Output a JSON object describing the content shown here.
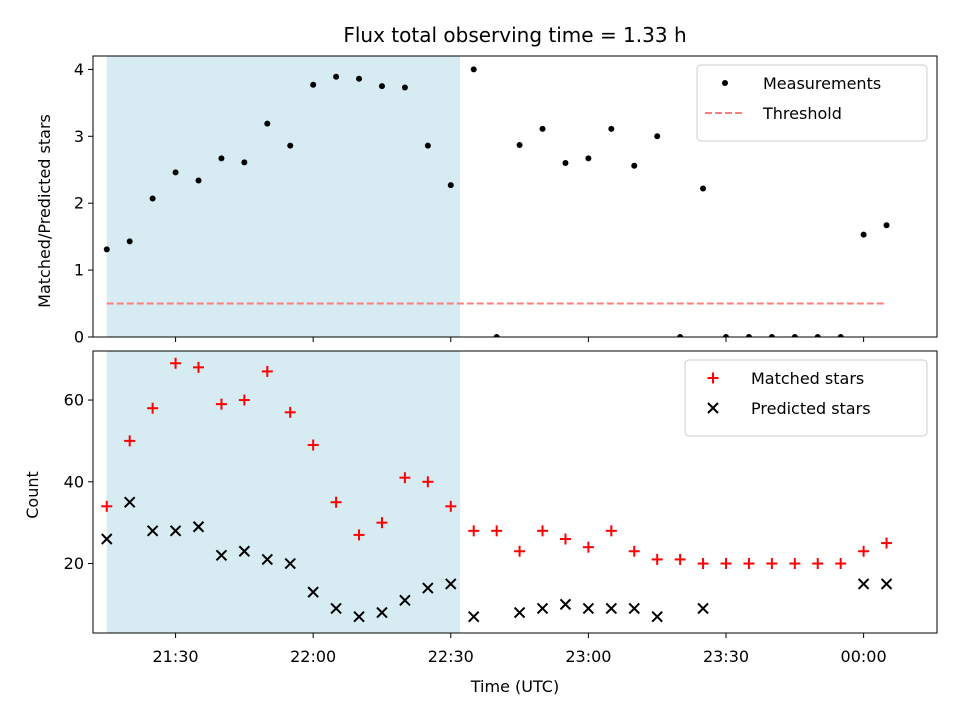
{
  "chart_data": {
    "type": "scatter",
    "title": "Flux total observing time = 1.33 h",
    "xlabel": "Time (UTC)",
    "x_ticks": [
      "21:30",
      "22:00",
      "22:30",
      "23:00",
      "23:30",
      "00:00"
    ],
    "x_tick_minutes": [
      1290,
      1320,
      1350,
      1380,
      1410,
      1440
    ],
    "xlim_minutes": [
      1272,
      1456
    ],
    "x_unit": "minutes since 00:00 UTC (minutes ≥ 1440 are after midnight)",
    "times": [
      "21:15",
      "21:20",
      "21:25",
      "21:30",
      "21:35",
      "21:40",
      "21:45",
      "21:50",
      "21:55",
      "22:00",
      "22:05",
      "22:10",
      "22:15",
      "22:20",
      "22:25",
      "22:30",
      "22:35",
      "22:40",
      "22:45",
      "22:50",
      "22:55",
      "23:00",
      "23:05",
      "23:10",
      "23:15",
      "23:20",
      "23:25",
      "23:30",
      "23:35",
      "23:40",
      "23:45",
      "23:50",
      "23:55",
      "00:00",
      "00:05"
    ],
    "time_minutes": [
      1275,
      1280,
      1285,
      1290,
      1295,
      1300,
      1305,
      1310,
      1315,
      1320,
      1325,
      1330,
      1335,
      1340,
      1345,
      1350,
      1355,
      1360,
      1365,
      1370,
      1375,
      1380,
      1385,
      1390,
      1395,
      1400,
      1405,
      1410,
      1415,
      1420,
      1425,
      1430,
      1435,
      1440,
      1445
    ],
    "shaded_region": [
      "21:15",
      "22:32"
    ],
    "shaded_region_minutes": [
      1275,
      1352
    ],
    "shaded_color": "#add8e6",
    "panels": [
      {
        "ylabel": "Matched/Predicted stars",
        "ylim": [
          0,
          4.2
        ],
        "y_ticks": [
          0,
          1,
          2,
          3,
          4
        ],
        "legend_position": "upper right",
        "series": [
          {
            "name": "Measurements",
            "marker": "dot",
            "color": "#000000",
            "x_minutes": [
              1275,
              1280,
              1285,
              1290,
              1295,
              1300,
              1305,
              1310,
              1315,
              1320,
              1325,
              1330,
              1335,
              1340,
              1345,
              1350,
              1355,
              1360,
              1365,
              1370,
              1375,
              1380,
              1385,
              1390,
              1395,
              1400,
              1405,
              1410,
              1415,
              1420,
              1425,
              1430,
              1435,
              1440,
              1445
            ],
            "values": [
              1.31,
              1.43,
              2.07,
              2.46,
              2.34,
              2.67,
              2.61,
              3.19,
              2.86,
              3.77,
              3.89,
              3.86,
              3.75,
              3.73,
              2.86,
              2.27,
              4.0,
              0,
              2.87,
              3.11,
              2.6,
              2.67,
              3.11,
              2.56,
              3.0,
              0,
              2.22,
              0,
              0,
              0,
              0,
              0,
              0,
              1.53,
              1.67
            ]
          }
        ],
        "threshold": {
          "name": "Threshold",
          "value": 0.5,
          "color": "#ff7f7f",
          "style": "dashed"
        }
      },
      {
        "ylabel": "Count",
        "ylim": [
          3,
          72
        ],
        "y_ticks": [
          20,
          40,
          60
        ],
        "legend_position": "upper right",
        "series": [
          {
            "name": "Matched stars",
            "marker": "plus",
            "color": "#ff0000",
            "x_minutes": [
              1275,
              1280,
              1285,
              1290,
              1295,
              1300,
              1305,
              1310,
              1315,
              1320,
              1325,
              1330,
              1335,
              1340,
              1345,
              1350,
              1355,
              1360,
              1365,
              1370,
              1375,
              1380,
              1385,
              1390,
              1395,
              1400,
              1405,
              1410,
              1415,
              1420,
              1425,
              1430,
              1435,
              1440,
              1445
            ],
            "values": [
              34,
              50,
              58,
              69,
              68,
              59,
              60,
              67,
              57,
              49,
              35,
              27,
              30,
              41,
              40,
              34,
              28,
              28,
              23,
              28,
              26,
              24,
              28,
              23,
              21,
              21,
              20,
              20,
              20,
              20,
              20,
              20,
              20,
              23,
              25
            ]
          },
          {
            "name": "Predicted stars",
            "marker": "x",
            "color": "#000000",
            "x_minutes": [
              1275,
              1280,
              1285,
              1290,
              1295,
              1300,
              1305,
              1310,
              1315,
              1320,
              1325,
              1330,
              1335,
              1340,
              1345,
              1350,
              1355,
              1365,
              1370,
              1375,
              1380,
              1385,
              1390,
              1395,
              1405,
              1440,
              1445
            ],
            "values": [
              26,
              35,
              28,
              28,
              29,
              22,
              23,
              21,
              20,
              13,
              9,
              7,
              8,
              11,
              14,
              15,
              7,
              8,
              9,
              10,
              9,
              9,
              9,
              7,
              9,
              15,
              15
            ]
          }
        ]
      }
    ]
  }
}
